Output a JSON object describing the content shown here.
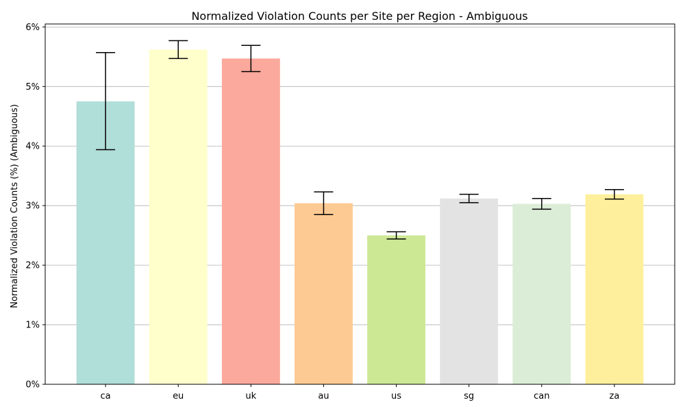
{
  "chart_data": {
    "type": "bar",
    "title": "Normalized Violation Counts per Site per Region - Ambiguous",
    "xlabel": "",
    "ylabel": "Normalized Violation Counts (%) (Ambiguous)",
    "categories": [
      "ca",
      "eu",
      "uk",
      "au",
      "us",
      "sg",
      "can",
      "za"
    ],
    "values": [
      4.75,
      5.62,
      5.47,
      3.04,
      2.5,
      3.12,
      3.03,
      3.19
    ],
    "error_low": [
      3.94,
      5.47,
      5.25,
      2.85,
      2.44,
      3.05,
      2.94,
      3.11
    ],
    "error_high": [
      5.57,
      5.77,
      5.69,
      3.23,
      2.56,
      3.19,
      3.12,
      3.27
    ],
    "colors": [
      "#b0ded8",
      "#ffffcc",
      "#fba99c",
      "#fdca93",
      "#cde895",
      "#e3e3e3",
      "#dcedd7",
      "#feef9d"
    ],
    "ylim": [
      0,
      6.05
    ],
    "yticks": [
      0,
      1,
      2,
      3,
      4,
      5,
      6
    ],
    "ytick_labels": [
      "0%",
      "1%",
      "2%",
      "3%",
      "4%",
      "5%",
      "6%"
    ],
    "grid": "y",
    "legend": false
  }
}
